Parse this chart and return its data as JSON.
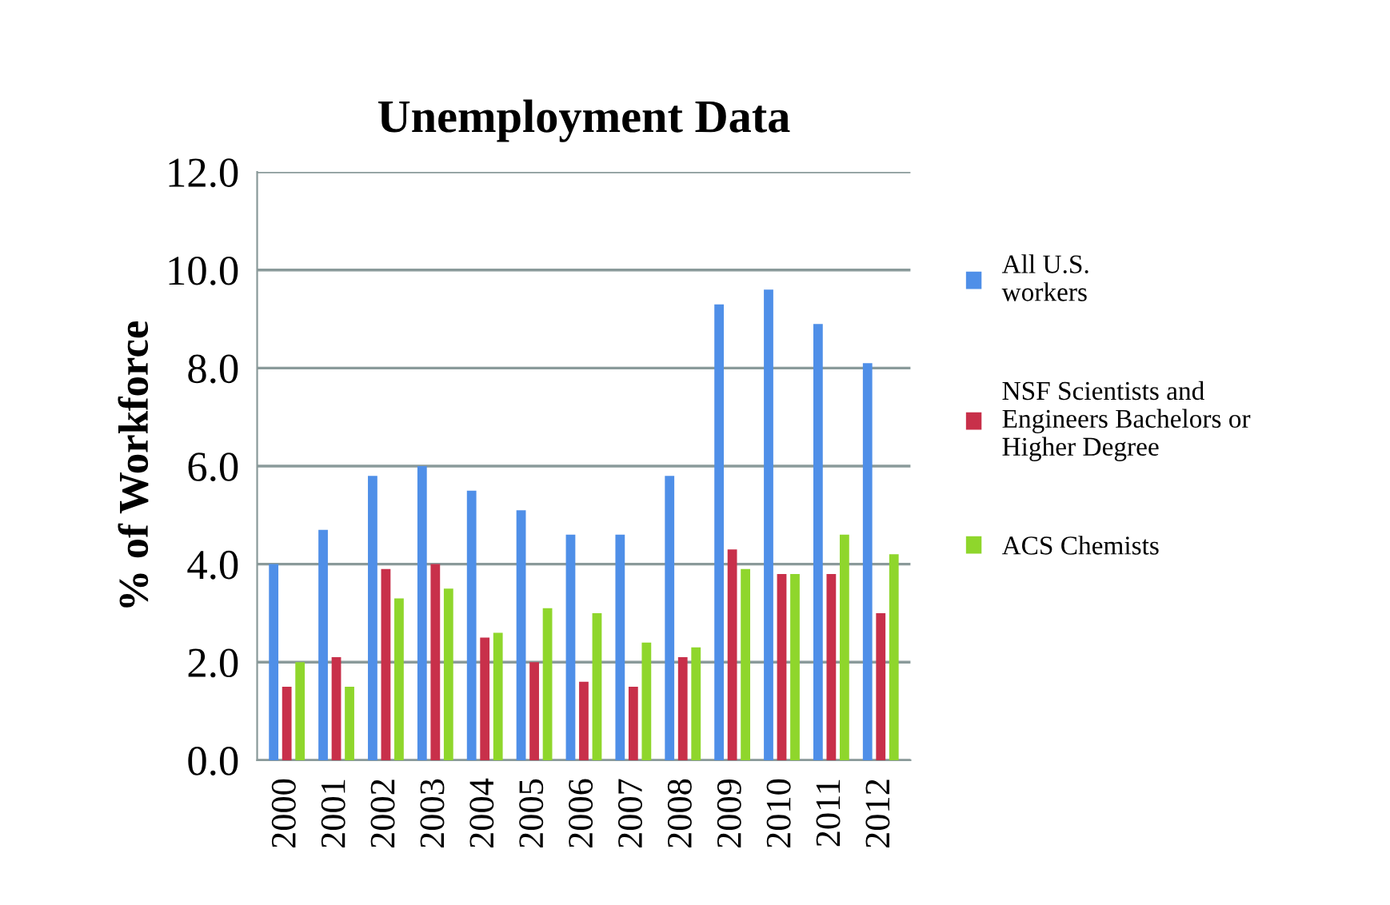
{
  "chart_data": {
    "type": "bar",
    "title": "Unemployment Data",
    "ylabel": "% of Workforce",
    "categories": [
      "2000",
      "2001",
      "2002",
      "2003",
      "2004",
      "2005",
      "2006",
      "2007",
      "2008",
      "2009",
      "2010",
      "2011",
      "2012"
    ],
    "series": [
      {
        "name": "All U.S.\nworkers",
        "color": "#4f8fe8",
        "values": [
          4.0,
          4.7,
          5.8,
          6.0,
          5.5,
          5.1,
          4.6,
          4.6,
          5.8,
          9.3,
          9.6,
          8.9,
          8.1
        ]
      },
      {
        "name": "NSF Scientists and\nEngineers Bachelors or\nHigher Degree",
        "color": "#c8304a",
        "values": [
          1.5,
          2.1,
          3.9,
          4.0,
          2.5,
          2.0,
          1.6,
          1.5,
          2.1,
          4.3,
          3.8,
          3.8,
          3.0
        ]
      },
      {
        "name": "ACS Chemists",
        "color": "#8fd62c",
        "values": [
          2.0,
          1.5,
          3.3,
          3.5,
          2.6,
          3.1,
          3.0,
          2.4,
          2.3,
          3.9,
          3.8,
          4.6,
          4.2
        ]
      }
    ],
    "ylim": [
      0,
      12
    ],
    "yticks": [
      {
        "value": 0,
        "label": "0.0"
      },
      {
        "value": 2,
        "label": "2.0"
      },
      {
        "value": 4,
        "label": "4.0"
      },
      {
        "value": 6,
        "label": "6.0"
      },
      {
        "value": 8,
        "label": "8.0"
      },
      {
        "value": 10,
        "label": "10.0"
      },
      {
        "value": 12,
        "label": "12.0"
      }
    ],
    "grid": "y",
    "legend": "right"
  }
}
